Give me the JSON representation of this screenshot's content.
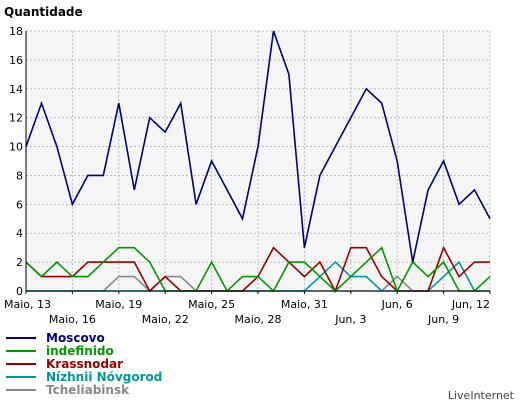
{
  "chart_data": {
    "type": "line",
    "title": "",
    "ylabel": "Quantidade",
    "xlabel": "",
    "ylim": [
      0,
      18
    ],
    "yticks": [
      0,
      2,
      4,
      6,
      8,
      10,
      12,
      14,
      16,
      18
    ],
    "grid": true,
    "legend_position": "bottom-left",
    "x_count": 31,
    "x_labels_upper": [
      {
        "index": 0,
        "label": "Maio, 13"
      },
      {
        "index": 6,
        "label": "Maio, 19"
      },
      {
        "index": 12,
        "label": "Maio, 25"
      },
      {
        "index": 18,
        "label": "Maio, 31"
      },
      {
        "index": 24,
        "label": "Jun, 6"
      },
      {
        "index": 30,
        "label": "Jun, 12"
      }
    ],
    "x_labels_lower": [
      {
        "index": 3,
        "label": "Maio, 16"
      },
      {
        "index": 9,
        "label": "Maio, 22"
      },
      {
        "index": 15,
        "label": "Maio, 28"
      },
      {
        "index": 21,
        "label": "Jun, 3"
      },
      {
        "index": 27,
        "label": "Jun, 9"
      }
    ],
    "series": [
      {
        "name": "Moscovo",
        "color": "#000080",
        "values": [
          10,
          13,
          10,
          6,
          8,
          8,
          13,
          7,
          12,
          11,
          13,
          6,
          9,
          7,
          5,
          10,
          18,
          15,
          3,
          8,
          10,
          12,
          14,
          13,
          9,
          2,
          7,
          9,
          6,
          7,
          5
        ]
      },
      {
        "name": "indefinido",
        "color": "#009900",
        "values": [
          2,
          1,
          2,
          1,
          1,
          2,
          3,
          3,
          2,
          0,
          0,
          0,
          2,
          0,
          1,
          1,
          0,
          2,
          2,
          1,
          0,
          1,
          2,
          3,
          0,
          2,
          1,
          2,
          0,
          0,
          1
        ]
      },
      {
        "name": "Krassnodar",
        "color": "#990000",
        "values": [
          2,
          1,
          1,
          1,
          2,
          2,
          2,
          2,
          0,
          1,
          0,
          0,
          0,
          0,
          0,
          1,
          3,
          2,
          1,
          2,
          0,
          3,
          3,
          1,
          0,
          0,
          0,
          3,
          1,
          2,
          2
        ]
      },
      {
        "name": "Nízhnii Nóvgorod",
        "color": "#009999",
        "values": [
          0,
          0,
          0,
          0,
          0,
          0,
          0,
          0,
          0,
          0,
          0,
          0,
          0,
          0,
          0,
          0,
          0,
          0,
          0,
          1,
          2,
          1,
          1,
          0,
          0,
          0,
          0,
          1,
          2,
          0,
          0
        ]
      },
      {
        "name": "Tcheliabinsk",
        "color": "#888888",
        "values": [
          0,
          0,
          0,
          0,
          0,
          0,
          1,
          1,
          0,
          1,
          1,
          0,
          0,
          0,
          0,
          0,
          0,
          0,
          0,
          0,
          0,
          0,
          0,
          0,
          1,
          0,
          0,
          0,
          0,
          0,
          0
        ]
      }
    ]
  },
  "credit": "LiveInternet"
}
